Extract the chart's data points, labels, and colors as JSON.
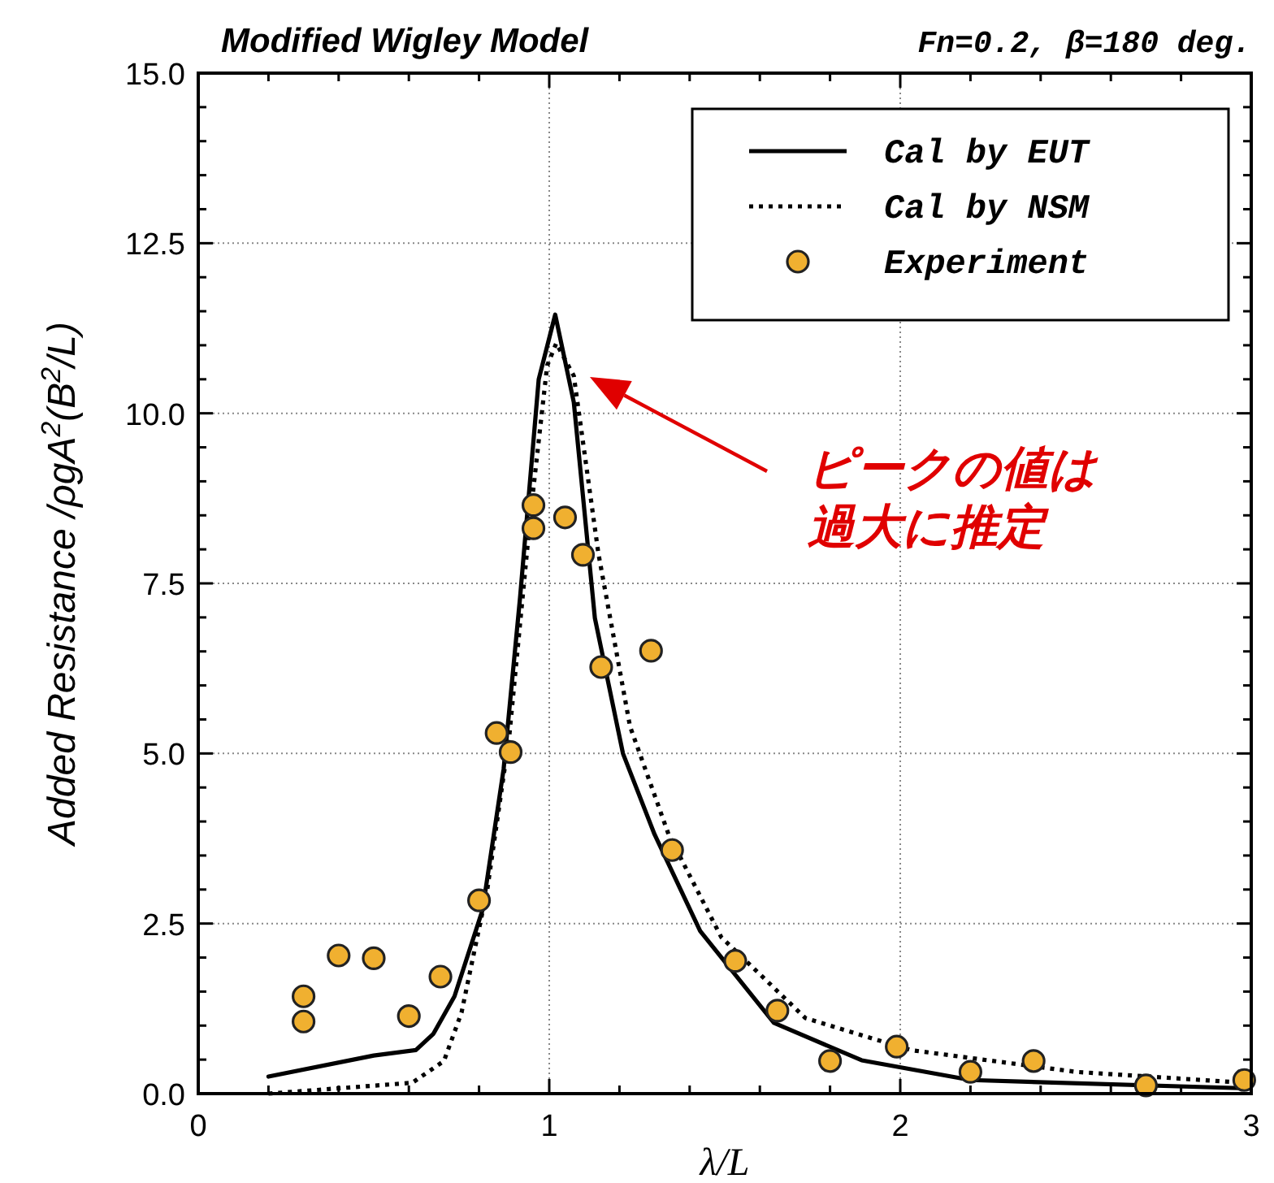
{
  "chart_data": {
    "type": "line",
    "title": "Modified Wigley Model",
    "subtitle": "Fn=0.2, β=180 deg.",
    "xlabel": "λ/L",
    "ylabel": "Added Resistance /ρgA$^{2}$(B$^{2}$/L)",
    "xlim": [
      0,
      3
    ],
    "xticks": [
      0,
      1,
      2,
      3
    ],
    "ylim": [
      0,
      15
    ],
    "yticks": [
      {
        "value": 0,
        "label": "0.0"
      },
      {
        "value": 2.5,
        "label": "2.5"
      },
      {
        "value": 5,
        "label": "5.0"
      },
      {
        "value": 7.5,
        "label": "7.5"
      },
      {
        "value": 10,
        "label": "10.0"
      },
      {
        "value": 12.5,
        "label": "12.5"
      },
      {
        "value": 15,
        "label": "15.0"
      }
    ],
    "grid": true,
    "legend": "top right",
    "annotations": [
      "ピークの値は過大に推定"
    ],
    "series": [
      {
        "name": "Cal by EUT",
        "color": "#000000",
        "line_style": "solid",
        "marker": "none",
        "x": [
          0.2,
          0.5,
          0.62,
          0.67,
          0.73,
          0.81,
          0.87,
          0.917,
          0.97,
          1.017,
          1.07,
          1.13,
          1.21,
          1.3,
          1.43,
          1.64,
          1.89,
          2.2,
          2.97
        ],
        "values": [
          0.25,
          0.56,
          0.64,
          0.88,
          1.43,
          2.7,
          4.77,
          7.3,
          10.5,
          11.45,
          10.16,
          6.99,
          5.0,
          3.81,
          2.39,
          1.04,
          0.49,
          0.2,
          0.08
        ]
      },
      {
        "name": "Cal by NSM",
        "color": "#000000",
        "line_style": "dotted",
        "marker": "none",
        "x": [
          0.2,
          0.61,
          0.7,
          0.75,
          0.824,
          0.886,
          0.948,
          0.994,
          1.02,
          1.07,
          1.14,
          1.23,
          1.34,
          1.49,
          1.73,
          2.03,
          2.5,
          2.98
        ],
        "values": [
          0.0,
          0.16,
          0.48,
          1.19,
          3.02,
          5.25,
          8.58,
          10.7,
          11.03,
          10.55,
          7.94,
          5.4,
          3.81,
          2.3,
          1.11,
          0.64,
          0.32,
          0.16
        ]
      },
      {
        "name": "Experiment",
        "type": "scatter",
        "color": "#f0b030",
        "marker": "circle",
        "x": [
          0.3,
          0.3,
          0.4,
          0.5,
          0.6,
          0.69,
          0.8,
          0.85,
          0.89,
          0.955,
          0.955,
          1.045,
          1.096,
          1.148,
          1.29,
          1.35,
          1.53,
          1.65,
          1.8,
          1.99,
          2.2,
          2.38,
          2.7,
          2.98
        ],
        "values": [
          1.43,
          1.06,
          2.03,
          1.99,
          1.14,
          1.72,
          2.84,
          5.3,
          5.02,
          8.65,
          8.31,
          8.47,
          7.92,
          6.27,
          6.51,
          3.58,
          1.95,
          1.22,
          0.48,
          0.69,
          0.32,
          0.48,
          0.12,
          0.2
        ]
      }
    ]
  }
}
